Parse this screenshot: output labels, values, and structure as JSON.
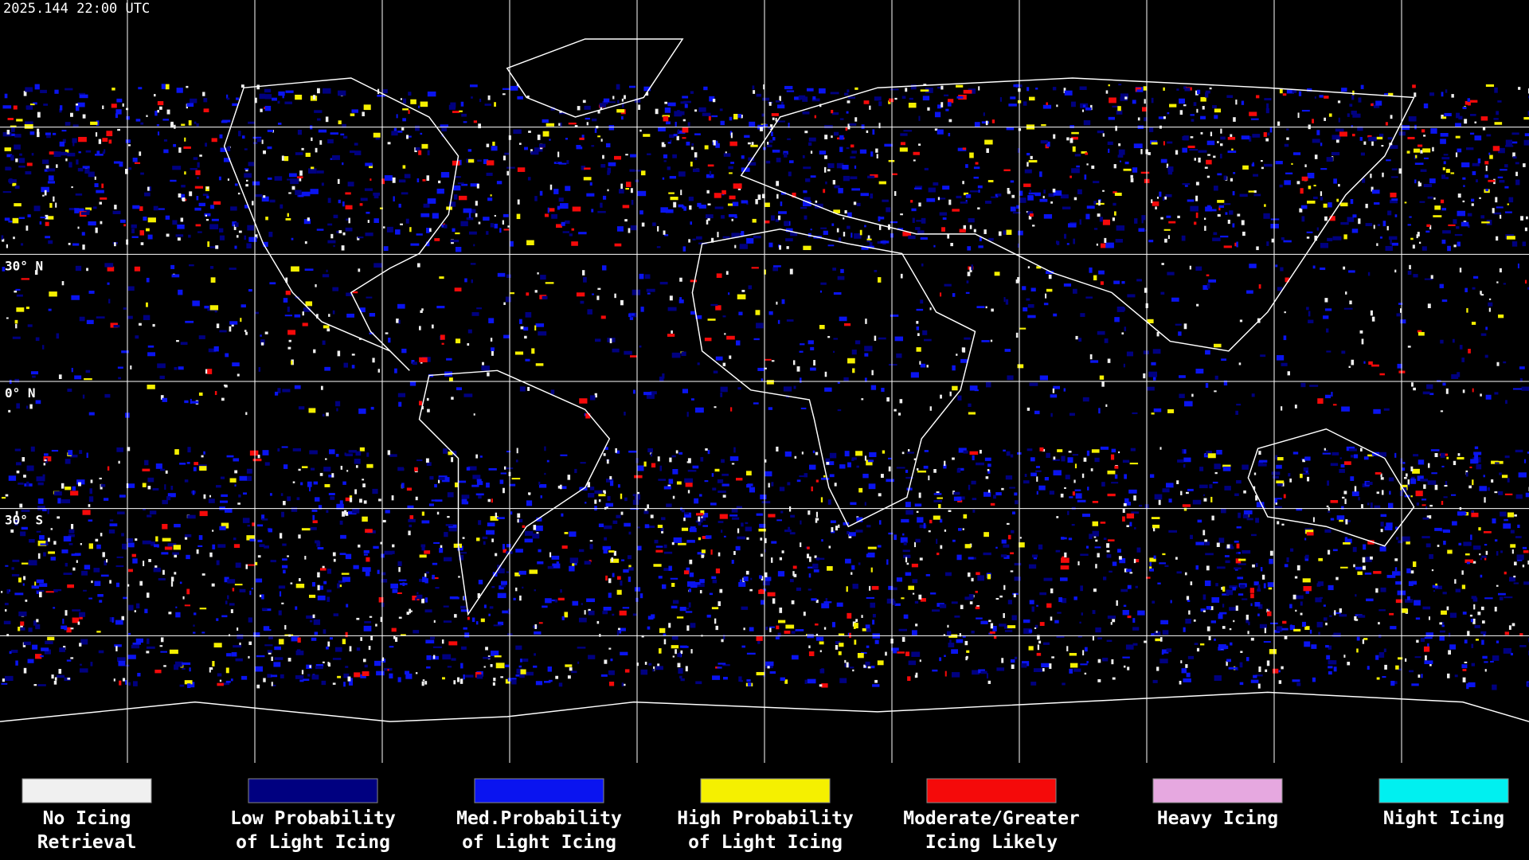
{
  "header": {
    "timestamp": "2025.144 22:00 UTC"
  },
  "map": {
    "grid": true,
    "lat_labels": [
      "30° N",
      "0° N",
      "30° S"
    ]
  },
  "legend": {
    "items": [
      {
        "lines": [
          "No Icing",
          "Retrieval"
        ],
        "color": "#f0f0f0"
      },
      {
        "lines": [
          "Low Probability",
          "of Light Icing"
        ],
        "color": "#000080"
      },
      {
        "lines": [
          "Med.Probability",
          "of Light Icing"
        ],
        "color": "#0a14f0"
      },
      {
        "lines": [
          "High Probability",
          "of Light Icing"
        ],
        "color": "#f5f000"
      },
      {
        "lines": [
          "Moderate/Greater",
          "Icing Likely"
        ],
        "color": "#f50a0a"
      },
      {
        "lines": [
          "Heavy Icing"
        ],
        "color": "#e6a8e0"
      },
      {
        "lines": [
          "Night Icing"
        ],
        "color": "#00f0f0"
      }
    ]
  }
}
